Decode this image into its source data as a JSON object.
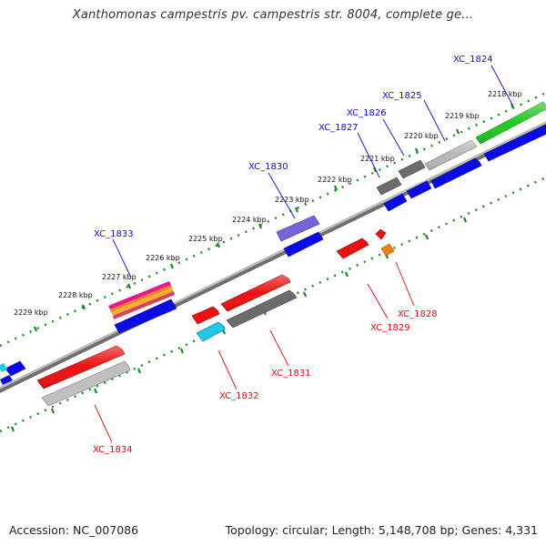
{
  "title": "Xanthomonas campestris pv. campestris str. 8004, complete ge...",
  "footer": {
    "accession": "Accession: NC_007086",
    "stats": "Topology: circular; Length: 5,148,708 bp; Genes: 4,331"
  },
  "colors": {
    "forward_label": "#1010c8",
    "reverse_label": "#d01010",
    "backbone": "#8a8a8a",
    "ticks": "#1a8a1a"
  },
  "kbp_labels": [
    "2218 kbp",
    "2219 kbp",
    "2220 kbp",
    "2221 kbp",
    "2222 kbp",
    "2223 kbp",
    "2224 kbp",
    "2225 kbp",
    "2226 kbp",
    "2227 kbp",
    "2228 kbp",
    "2229 kbp"
  ],
  "gene_labels": {
    "forward": [
      "XC_1824",
      "XC_1825",
      "XC_1826",
      "XC_1827",
      "XC_1830",
      "XC_1833"
    ],
    "reverse": [
      "XC_1828",
      "XC_1829",
      "XC_1831",
      "XC_1832",
      "XC_1834"
    ]
  }
}
